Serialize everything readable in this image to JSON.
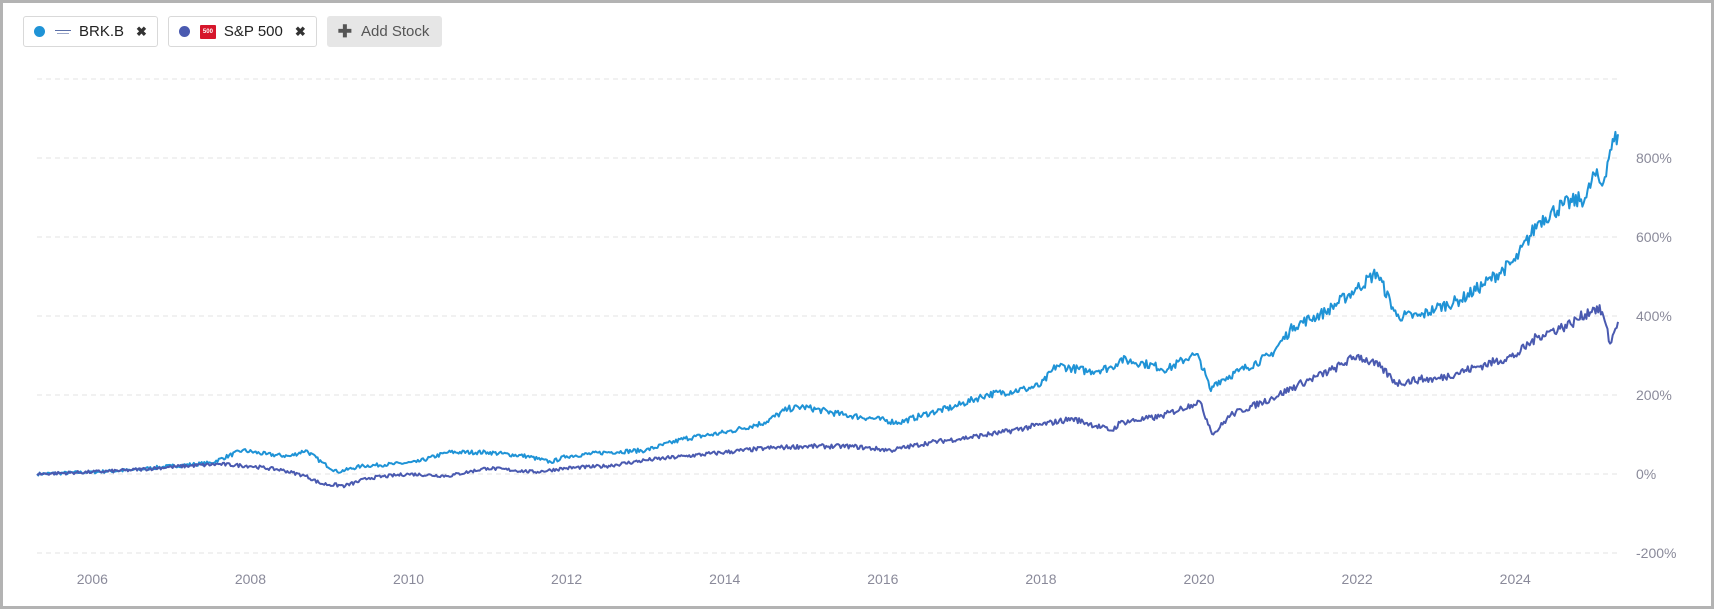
{
  "legend": {
    "brk": {
      "label": "BRK.B",
      "logo_icon": "berkshire-hathaway-logo",
      "remove_icon": "close-icon"
    },
    "sp": {
      "label": "S&P 500",
      "logo_text": "500",
      "remove_icon": "close-icon"
    },
    "add_label": "Add Stock",
    "add_icon": "plus-icon"
  },
  "colors": {
    "brk": "#1f93d6",
    "sp": "#4a5ab0"
  },
  "chart_data": {
    "type": "line",
    "title": "",
    "xlabel": "",
    "ylabel": "",
    "x_range": [
      2005.3,
      2025.3
    ],
    "ylim": [
      -200,
      1000
    ],
    "y_ticks": [
      -200,
      0,
      200,
      400,
      600,
      800
    ],
    "y_tick_labels": [
      "-200%",
      "0%",
      "200%",
      "400%",
      "600%",
      "800%"
    ],
    "x_ticks": [
      2006,
      2008,
      2010,
      2012,
      2014,
      2016,
      2018,
      2020,
      2022,
      2024
    ],
    "x_tick_labels": [
      "2006",
      "2008",
      "2010",
      "2012",
      "2014",
      "2016",
      "2018",
      "2020",
      "2022",
      "2024"
    ],
    "grid": true,
    "legend_position": "top-left",
    "series": [
      {
        "name": "BRK.B",
        "color": "#1f93d6",
        "x": [
          2005.3,
          2006.0,
          2006.5,
          2007.0,
          2007.5,
          2007.9,
          2008.2,
          2008.5,
          2008.7,
          2008.9,
          2009.1,
          2009.4,
          2009.8,
          2010.1,
          2010.5,
          2011.0,
          2011.5,
          2011.8,
          2012.0,
          2012.5,
          2013.0,
          2013.5,
          2014.0,
          2014.5,
          2014.8,
          2015.0,
          2015.5,
          2015.9,
          2016.2,
          2016.6,
          2016.9,
          2017.3,
          2017.8,
          2018.0,
          2018.2,
          2018.6,
          2018.9,
          2019.0,
          2019.3,
          2019.6,
          2019.9,
          2020.0,
          2020.15,
          2020.2,
          2020.5,
          2020.9,
          2021.2,
          2021.6,
          2022.0,
          2022.25,
          2022.5,
          2022.8,
          2023.0,
          2023.3,
          2023.6,
          2024.0,
          2024.3,
          2024.6,
          2024.9,
          2025.0,
          2025.1,
          2025.2,
          2025.3
        ],
        "values": [
          0,
          5,
          10,
          20,
          28,
          60,
          50,
          45,
          60,
          30,
          5,
          20,
          25,
          30,
          55,
          55,
          45,
          30,
          45,
          55,
          60,
          90,
          105,
          130,
          165,
          170,
          150,
          140,
          130,
          155,
          170,
          200,
          215,
          225,
          275,
          260,
          270,
          290,
          280,
          265,
          300,
          295,
          210,
          230,
          260,
          300,
          375,
          410,
          470,
          510,
          400,
          400,
          420,
          440,
          480,
          540,
          640,
          680,
          700,
          760,
          730,
          820,
          860
        ]
      },
      {
        "name": "S&P 500",
        "color": "#4a5ab0",
        "x": [
          2005.3,
          2006.0,
          2006.5,
          2007.0,
          2007.6,
          2008.0,
          2008.4,
          2008.7,
          2008.9,
          2009.2,
          2009.5,
          2010.0,
          2010.5,
          2011.0,
          2011.6,
          2012.0,
          2012.5,
          2013.0,
          2013.5,
          2014.0,
          2014.5,
          2015.0,
          2015.6,
          2016.1,
          2016.6,
          2017.0,
          2017.5,
          2018.0,
          2018.4,
          2018.9,
          2019.0,
          2019.5,
          2019.9,
          2020.0,
          2020.18,
          2020.4,
          2020.9,
          2021.3,
          2021.7,
          2022.0,
          2022.3,
          2022.5,
          2022.8,
          2023.0,
          2023.5,
          2024.0,
          2024.3,
          2024.7,
          2025.0,
          2025.1,
          2025.2,
          2025.3
        ],
        "values": [
          0,
          5,
          10,
          18,
          25,
          20,
          10,
          -5,
          -25,
          -30,
          -10,
          0,
          -5,
          15,
          5,
          15,
          20,
          35,
          45,
          55,
          65,
          70,
          70,
          60,
          80,
          90,
          105,
          125,
          140,
          110,
          130,
          145,
          175,
          185,
          100,
          150,
          190,
          230,
          265,
          300,
          270,
          230,
          240,
          240,
          270,
          300,
          350,
          380,
          420,
          410,
          330,
          385
        ]
      }
    ]
  }
}
